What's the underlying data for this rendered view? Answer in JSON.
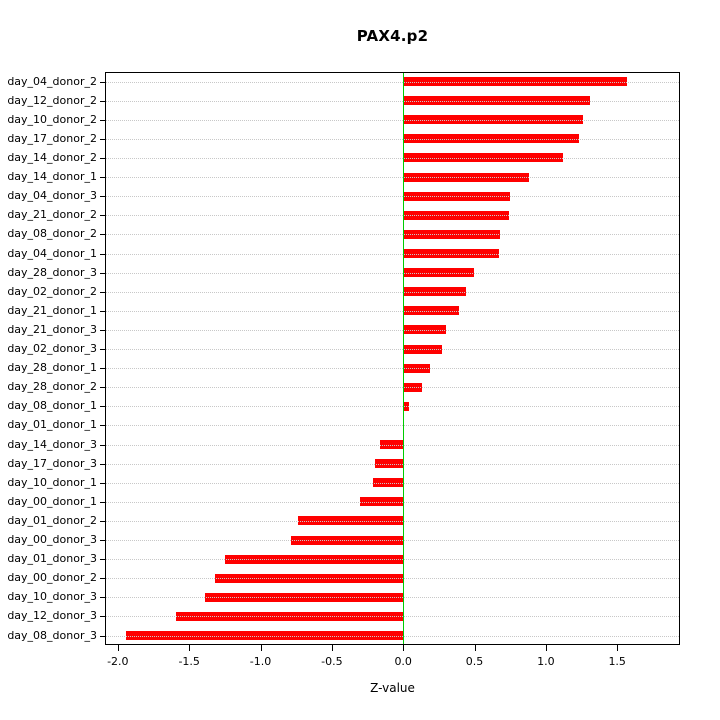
{
  "chart_data": {
    "type": "bar",
    "orientation": "horizontal",
    "title": "PAX4.p2",
    "xlabel": "Z-value",
    "categories": [
      "day_04_donor_2",
      "day_12_donor_2",
      "day_10_donor_2",
      "day_17_donor_2",
      "day_14_donor_2",
      "day_14_donor_1",
      "day_04_donor_3",
      "day_21_donor_2",
      "day_08_donor_2",
      "day_04_donor_1",
      "day_28_donor_3",
      "day_02_donor_2",
      "day_21_donor_1",
      "day_21_donor_3",
      "day_02_donor_3",
      "day_28_donor_1",
      "day_28_donor_2",
      "day_08_donor_1",
      "day_01_donor_1",
      "day_14_donor_3",
      "day_17_donor_3",
      "day_10_donor_1",
      "day_00_donor_1",
      "day_01_donor_2",
      "day_00_donor_3",
      "day_01_donor_3",
      "day_00_donor_2",
      "day_10_donor_3",
      "day_12_donor_3",
      "day_08_donor_3"
    ],
    "values": [
      1.57,
      1.31,
      1.26,
      1.23,
      1.12,
      0.88,
      0.75,
      0.74,
      0.68,
      0.67,
      0.5,
      0.44,
      0.39,
      0.3,
      0.27,
      0.19,
      0.13,
      0.04,
      0.0,
      -0.16,
      -0.2,
      -0.21,
      -0.3,
      -0.74,
      -0.79,
      -1.25,
      -1.32,
      -1.39,
      -1.59,
      -1.94
    ],
    "xlim": [
      -2.09,
      1.94
    ],
    "xticks": [
      -2.0,
      -1.5,
      -1.0,
      -0.5,
      0.0,
      0.5,
      1.0,
      1.5
    ],
    "grid": true,
    "colors": {
      "bar": "#ff0000",
      "zero_line": "#00cc00",
      "gridline": "#c8c8c8",
      "axis": "#000000",
      "background": "#ffffff"
    }
  }
}
